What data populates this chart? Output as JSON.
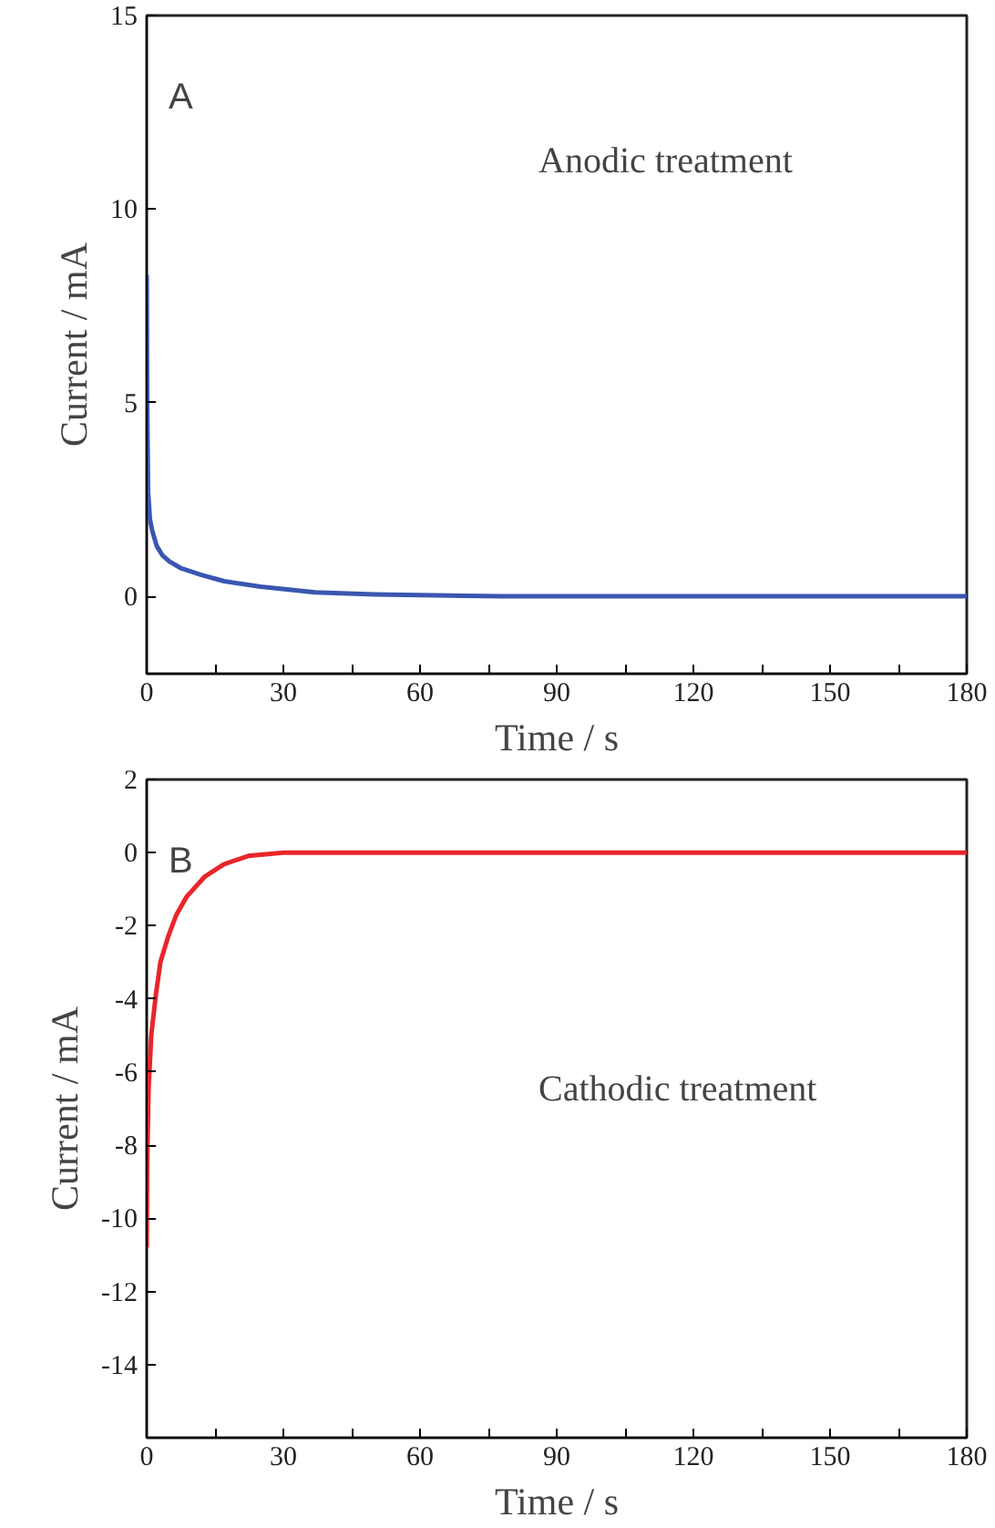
{
  "chart_data": [
    {
      "type": "line",
      "xlabel": "Time / s",
      "ylabel": "Current / mA",
      "annotations": [
        "A",
        "Anodic treatment"
      ],
      "xlim": [
        0,
        180
      ],
      "ylim": [
        -2,
        15
      ],
      "xticks": [
        0,
        {
          "value": 15,
          "label": null
        },
        30,
        {
          "value": 45,
          "label": null
        },
        60,
        {
          "value": 75,
          "label": null
        },
        90,
        {
          "value": 105,
          "label": null
        },
        120,
        {
          "value": 135,
          "label": null
        },
        150,
        {
          "value": 165,
          "label": null
        },
        180
      ],
      "yticks": [
        0,
        5,
        10,
        15
      ],
      "x": [
        0,
        0.1,
        0.3,
        0.7,
        1.2,
        2.2,
        3.5,
        5,
        7.6,
        12,
        17,
        25,
        37,
        50,
        78,
        100,
        130,
        160,
        180
      ],
      "series": [
        {
          "color": "#3a56b0",
          "values": [
            8.3,
            5.0,
            2.7,
            2.0,
            1.7,
            1.3,
            1.05,
            0.9,
            0.72,
            0.55,
            0.39,
            0.25,
            0.1,
            0.05,
            0.0,
            0.0,
            0.0,
            0.0,
            0.0
          ]
        }
      ]
    },
    {
      "type": "line",
      "xlabel": "Time / s",
      "ylabel": "Current / mA",
      "annotations": [
        "B",
        "Cathodic treatment"
      ],
      "xlim": [
        0,
        180
      ],
      "ylim": [
        -16,
        2
      ],
      "xticks": [
        0,
        {
          "value": 15,
          "label": null
        },
        30,
        {
          "value": 45,
          "label": null
        },
        60,
        {
          "value": 75,
          "label": null
        },
        90,
        {
          "value": 105,
          "label": null
        },
        120,
        {
          "value": 135,
          "label": null
        },
        150,
        {
          "value": 165,
          "label": null
        },
        180
      ],
      "yticks": [
        2,
        0,
        -2,
        -4,
        -6,
        -8,
        -10,
        -12,
        -14
      ],
      "x": [
        0,
        0.1,
        0.4,
        1,
        2,
        3,
        4.7,
        6.5,
        8.8,
        12.8,
        16.9,
        22.3,
        30,
        60,
        100,
        140,
        180
      ],
      "series": [
        {
          "color": "#e8262b",
          "values": [
            -10.8,
            -8.5,
            -6.5,
            -5.0,
            -3.9,
            -3.0,
            -2.3,
            -1.7,
            -1.2,
            -0.65,
            -0.32,
            -0.09,
            0.0,
            0.0,
            0.0,
            0.0,
            0.0
          ]
        }
      ]
    }
  ]
}
